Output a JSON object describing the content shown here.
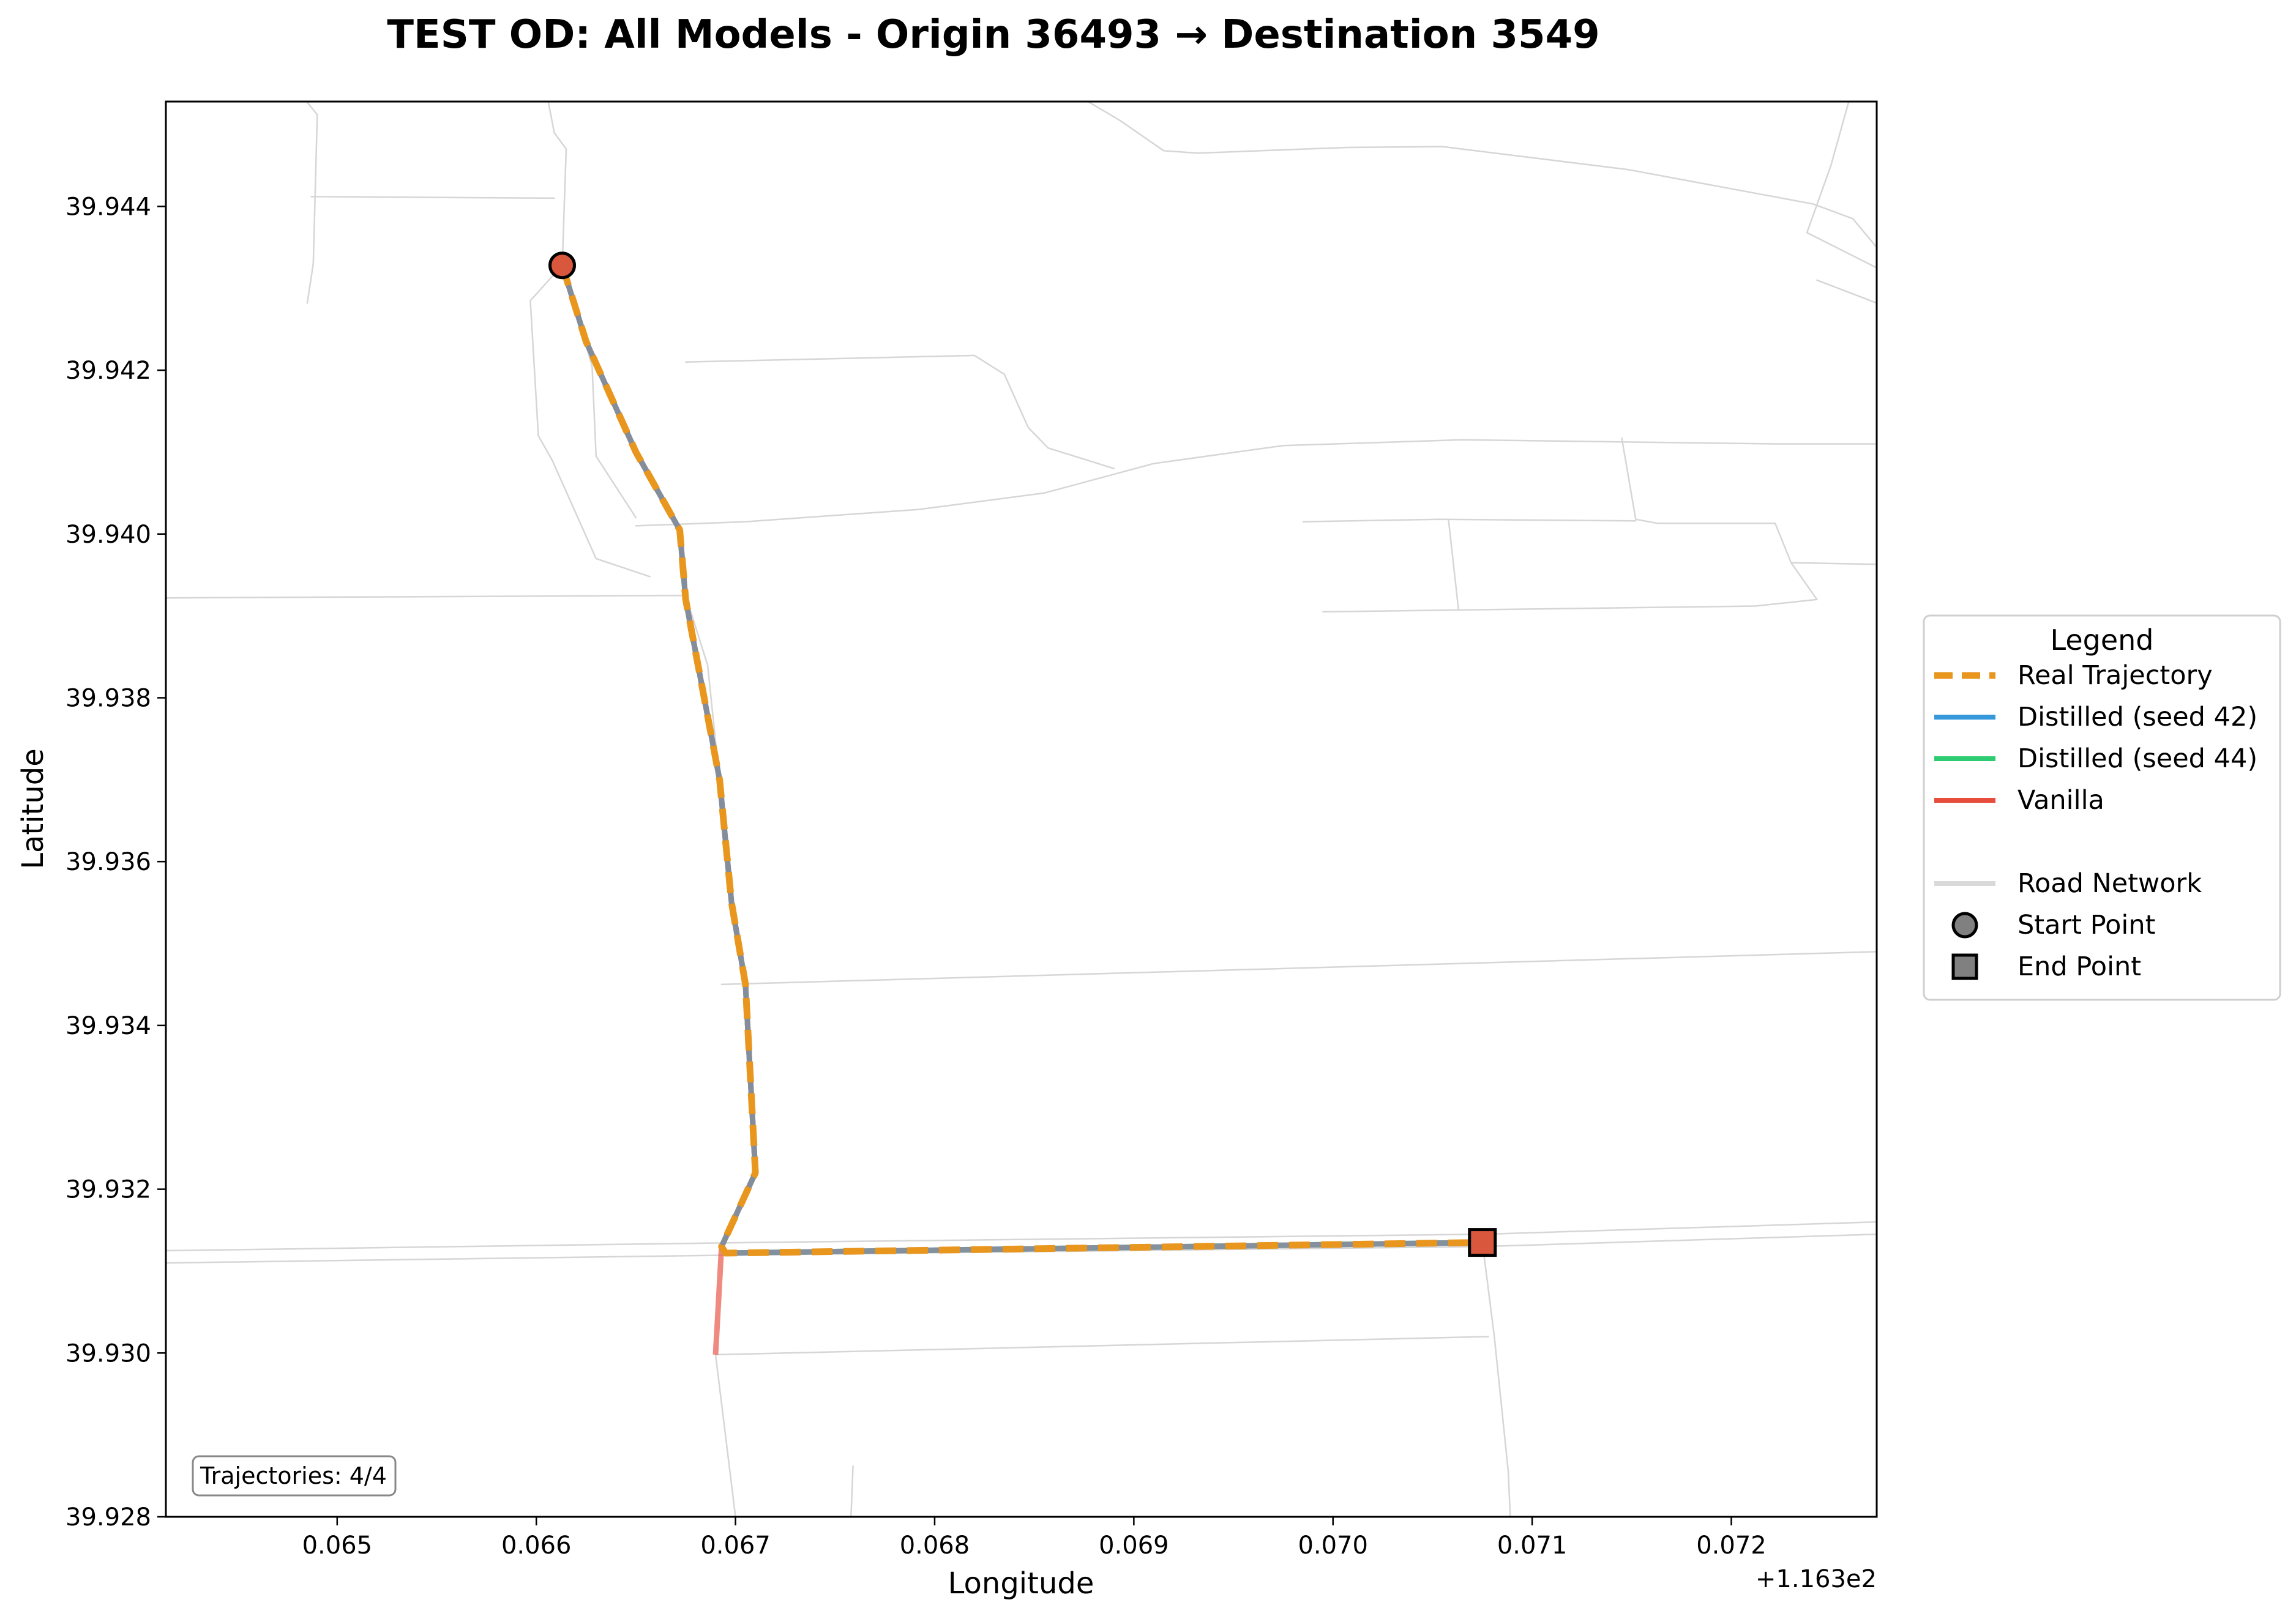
{
  "chart_data": {
    "type": "line",
    "title": "TEST OD: All Models - Origin 36493 → Destination 3549",
    "xlabel": "Longitude",
    "ylabel": "Latitude",
    "x_offset_label": "+1.163e2",
    "xlim": [
      0.06414,
      0.07273
    ],
    "ylim": [
      39.928,
      39.94528
    ],
    "xticks": [
      "0.065",
      "0.066",
      "0.067",
      "0.068",
      "0.069",
      "0.070",
      "0.071",
      "0.072"
    ],
    "yticks": [
      "39.928",
      "39.930",
      "39.932",
      "39.934",
      "39.936",
      "39.938",
      "39.940",
      "39.942",
      "39.944"
    ],
    "grid": false,
    "legend_placement": "outside-right",
    "legend_title": "Legend",
    "colors": {
      "real": "#e8961e",
      "distilled42": "#3498db",
      "distilled44": "#2ecc71",
      "vanilla": "#e74c3c",
      "overlap": "#8a8a9a",
      "road": "#d6d6d6",
      "marker": "#d9573d"
    },
    "legend": [
      {
        "label": "Real Trajectory",
        "kind": "dashed",
        "color": "#e8961e"
      },
      {
        "label": "Distilled (seed 42)",
        "kind": "line",
        "color": "#3498db"
      },
      {
        "label": "Distilled (seed 44)",
        "kind": "line",
        "color": "#2ecc71"
      },
      {
        "label": "Vanilla",
        "kind": "line",
        "color": "#e74c3c"
      },
      {
        "label": "",
        "kind": "spacer",
        "color": ""
      },
      {
        "label": "Road Network",
        "kind": "line",
        "color": "#d9d9d9"
      },
      {
        "label": "Start Point",
        "kind": "circle",
        "color": "#808080"
      },
      {
        "label": "End Point",
        "kind": "square",
        "color": "#808080"
      }
    ],
    "info": "Trajectories: 4/4",
    "start": {
      "x": 0.06613,
      "y": 39.94328
    },
    "end": {
      "x": 0.07075,
      "y": 39.93135
    },
    "series": [
      {
        "name": "Distilled (seed 42)",
        "x": [
          0.06613,
          0.06625,
          0.0665,
          0.06672,
          0.06675,
          0.06692,
          0.06698,
          0.06705,
          0.0671,
          0.06693,
          0.06695,
          0.07075
        ],
        "y": [
          39.94328,
          39.94235,
          39.941,
          39.94005,
          39.9392,
          39.937,
          39.9355,
          39.9345,
          39.9322,
          39.9313,
          39.93122,
          39.93135
        ]
      },
      {
        "name": "Distilled (seed 44)",
        "x": [
          0.06613,
          0.06625,
          0.0665,
          0.06672,
          0.06675,
          0.06692,
          0.06698,
          0.06705,
          0.0671,
          0.06693,
          0.06695,
          0.07075
        ],
        "y": [
          39.94328,
          39.94235,
          39.941,
          39.94005,
          39.9392,
          39.937,
          39.9355,
          39.9345,
          39.9322,
          39.9313,
          39.93122,
          39.93135
        ]
      },
      {
        "name": "Vanilla",
        "x": [
          0.06613,
          0.06625,
          0.0665,
          0.06672,
          0.06675,
          0.06692,
          0.06698,
          0.06705,
          0.0671,
          0.06693,
          0.0669
        ],
        "y": [
          39.94328,
          39.94235,
          39.941,
          39.94005,
          39.9392,
          39.937,
          39.9355,
          39.9345,
          39.9322,
          39.9313,
          39.92998
        ]
      },
      {
        "name": "Real Trajectory",
        "x": [
          0.06613,
          0.06625,
          0.0665,
          0.06672,
          0.06675,
          0.06692,
          0.06698,
          0.06705,
          0.0671,
          0.06693,
          0.06695,
          0.07075
        ],
        "y": [
          39.94328,
          39.94235,
          39.941,
          39.94005,
          39.9392,
          39.937,
          39.9355,
          39.9345,
          39.9322,
          39.9313,
          39.93122,
          39.93135
        ]
      }
    ],
    "roads": [
      [
        [
          0.06485,
          39.94527
        ],
        [
          0.0649,
          39.94512
        ],
        [
          0.06488,
          39.9433
        ],
        [
          0.06485,
          39.94282
        ]
      ],
      [
        [
          0.06487,
          39.94412
        ],
        [
          0.06609,
          39.9441
        ]
      ],
      [
        [
          0.06606,
          39.94528
        ],
        [
          0.06609,
          39.9449
        ],
        [
          0.06615,
          39.9447
        ],
        [
          0.06613,
          39.94328
        ],
        [
          0.06597,
          39.94285
        ],
        [
          0.06601,
          39.9412
        ],
        [
          0.06608,
          39.9409
        ],
        [
          0.0663,
          39.9397
        ],
        [
          0.06657,
          39.93948
        ]
      ],
      [
        [
          0.06613,
          39.94328
        ],
        [
          0.06628,
          39.94205
        ],
        [
          0.0663,
          39.94095
        ],
        [
          0.0665,
          39.9402
        ]
      ],
      [
        [
          0.06414,
          39.93922
        ],
        [
          0.06675,
          39.93925
        ],
        [
          0.06686,
          39.9384
        ],
        [
          0.06692,
          39.937
        ]
      ],
      [
        [
          0.0665,
          39.9401
        ],
        [
          0.06705,
          39.94015
        ],
        [
          0.06792,
          39.9403
        ],
        [
          0.06855,
          39.9405
        ],
        [
          0.0691,
          39.94086
        ],
        [
          0.06975,
          39.94108
        ],
        [
          0.07065,
          39.94115
        ],
        [
          0.07222,
          39.9411
        ],
        [
          0.07273,
          39.9411
        ]
      ],
      [
        [
          0.06675,
          39.9421
        ],
        [
          0.0682,
          39.94218
        ],
        [
          0.06835,
          39.94195
        ],
        [
          0.06847,
          39.9413
        ],
        [
          0.06857,
          39.94105
        ],
        [
          0.0689,
          39.9408
        ]
      ],
      [
        [
          0.07145,
          39.94117
        ],
        [
          0.07152,
          39.94018
        ],
        [
          0.07163,
          39.94013
        ],
        [
          0.07222,
          39.94013
        ],
        [
          0.0723,
          39.93965
        ],
        [
          0.07273,
          39.93963
        ]
      ],
      [
        [
          0.06985,
          39.94015
        ],
        [
          0.07053,
          39.94018
        ],
        [
          0.07152,
          39.94016
        ]
      ],
      [
        [
          0.07058,
          39.94018
        ],
        [
          0.07063,
          39.93908
        ]
      ],
      [
        [
          0.06995,
          39.93905
        ],
        [
          0.07212,
          39.93912
        ],
        [
          0.07243,
          39.9392
        ],
        [
          0.0723,
          39.93965
        ]
      ],
      [
        [
          0.06877,
          39.94528
        ],
        [
          0.06893,
          39.94505
        ],
        [
          0.06915,
          39.94468
        ],
        [
          0.06932,
          39.94465
        ],
        [
          0.07007,
          39.94472
        ],
        [
          0.07055,
          39.94473
        ],
        [
          0.07148,
          39.94445
        ],
        [
          0.07241,
          39.94403
        ],
        [
          0.07261,
          39.94385
        ],
        [
          0.07273,
          39.9435
        ]
      ],
      [
        [
          0.07259,
          39.94528
        ],
        [
          0.0725,
          39.9445
        ],
        [
          0.07238,
          39.94368
        ],
        [
          0.07273,
          39.94325
        ]
      ],
      [
        [
          0.07243,
          39.9431
        ],
        [
          0.07273,
          39.94282
        ]
      ],
      [
        [
          0.06414,
          39.93125
        ],
        [
          0.0671,
          39.93135
        ],
        [
          0.07075,
          39.93145
        ],
        [
          0.07273,
          39.9316
        ]
      ],
      [
        [
          0.06414,
          39.9311
        ],
        [
          0.0671,
          39.9312
        ],
        [
          0.07075,
          39.9313
        ],
        [
          0.07273,
          39.93145
        ]
      ],
      [
        [
          0.06693,
          39.9345
        ],
        [
          0.07273,
          39.9349
        ]
      ],
      [
        [
          0.0669,
          39.92998
        ],
        [
          0.07078,
          39.9302
        ]
      ],
      [
        [
          0.0669,
          39.92998
        ],
        [
          0.067,
          39.928
        ]
      ],
      [
        [
          0.06759,
          39.92862
        ],
        [
          0.06758,
          39.928
        ]
      ],
      [
        [
          0.07075,
          39.93135
        ],
        [
          0.07081,
          39.9302
        ],
        [
          0.07088,
          39.92855
        ],
        [
          0.07089,
          39.928
        ]
      ]
    ]
  }
}
